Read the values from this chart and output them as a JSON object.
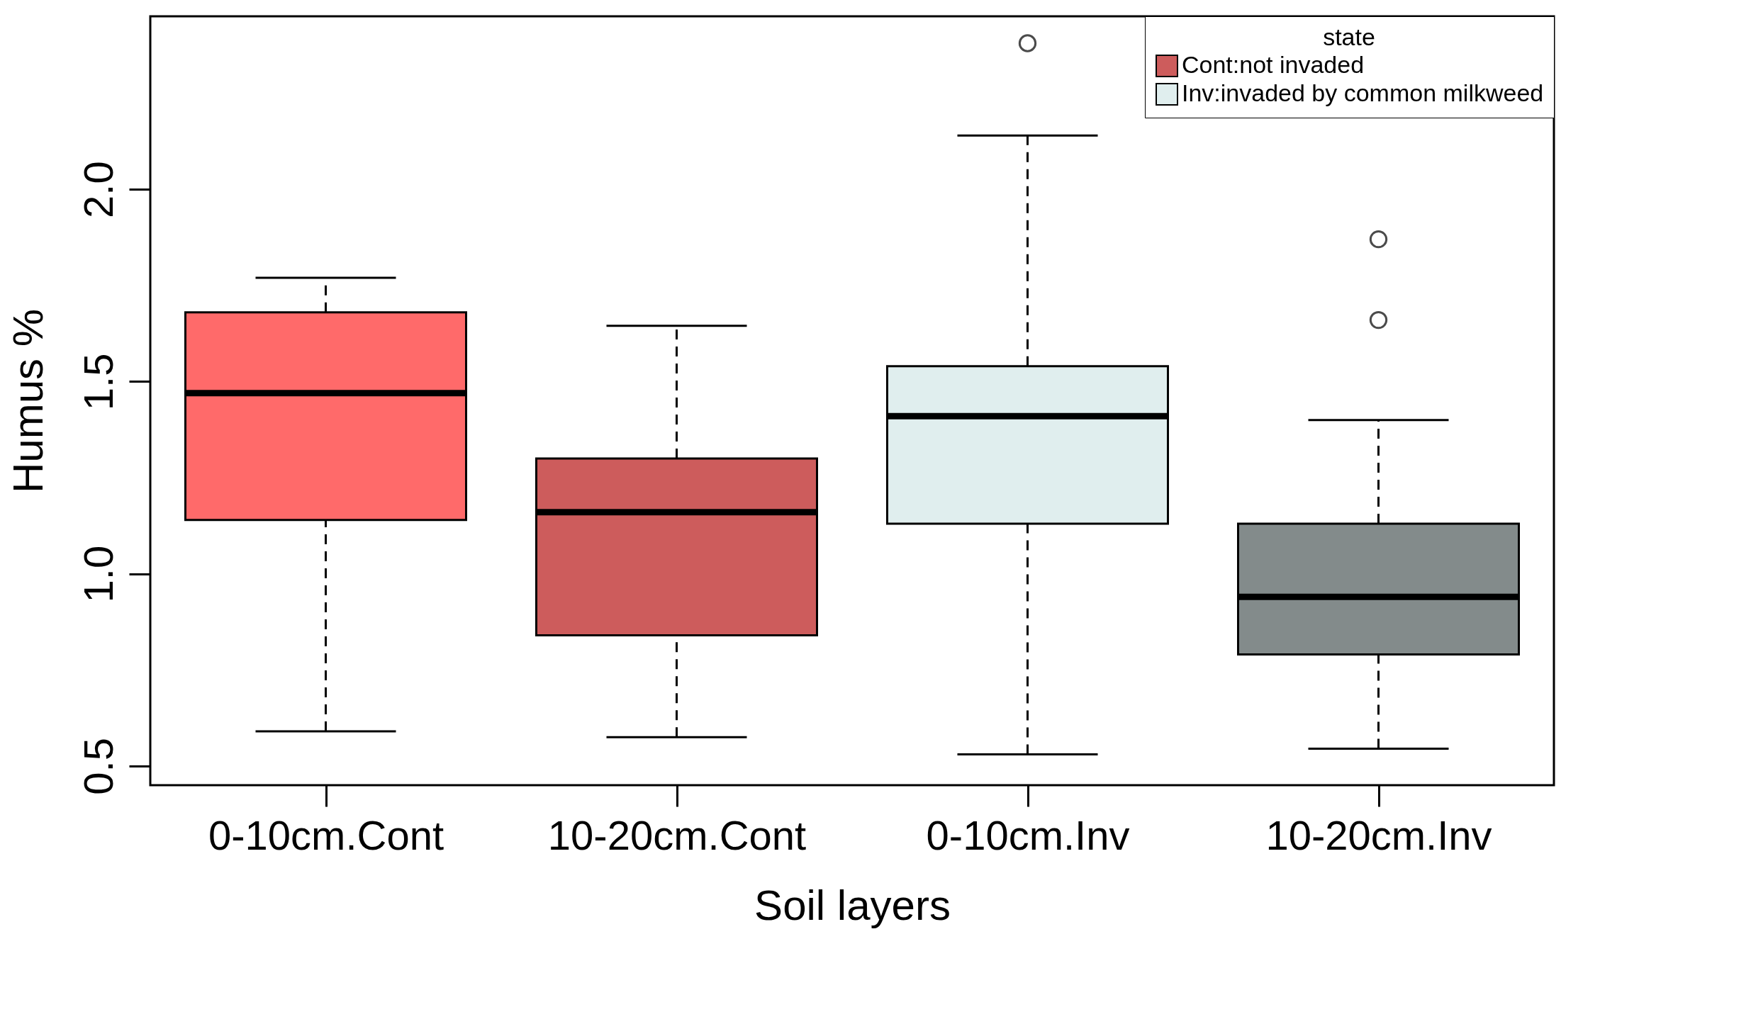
{
  "chart_data": {
    "type": "box",
    "xlabel": "Soil layers",
    "ylabel": "Humus %",
    "legend_title": "state",
    "legend": "top right",
    "grid": false,
    "line_style": "dashed",
    "marker": "circle",
    "categories": [
      "0-10cm.Cont",
      "10-20cm.Cont",
      "0-10cm.Inv",
      "10-20cm.Inv"
    ],
    "ylim": [
      0.45,
      2.45
    ],
    "yticks": [
      0.5,
      {
        "value": 1,
        "label": "1.0"
      },
      1.5,
      {
        "value": 2,
        "label": "2.0"
      }
    ],
    "series": [
      {
        "name": "Cont:not invaded",
        "color": "#cd5c5c",
        "colors": [
          "#ff6a6a",
          "#cd5c5c",
          null,
          null
        ],
        "boxes": [
          {
            "low": 0.59,
            "q1": 1.14,
            "median": 1.47,
            "q3": 1.68,
            "high": 1.77
          },
          {
            "low": 0.575,
            "q1": 0.84,
            "median": 1.16,
            "q3": 1.3,
            "high": 1.645
          },
          null,
          null
        ]
      },
      {
        "name": "Inv:invaded by common milkweed",
        "color": "#e0eeee",
        "colors": [
          null,
          null,
          "#e0eeee",
          "#838b8b"
        ],
        "boxes": [
          null,
          null,
          {
            "low": 0.53,
            "q1": 1.13,
            "median": 1.41,
            "q3": 1.54,
            "high": 2.14,
            "outliers": [
              2.38
            ]
          },
          {
            "low": 0.545,
            "q1": 0.79,
            "median": 0.94,
            "q3": 1.13,
            "high": 1.4,
            "outliers": [
              1.87,
              1.66
            ]
          }
        ]
      }
    ]
  }
}
